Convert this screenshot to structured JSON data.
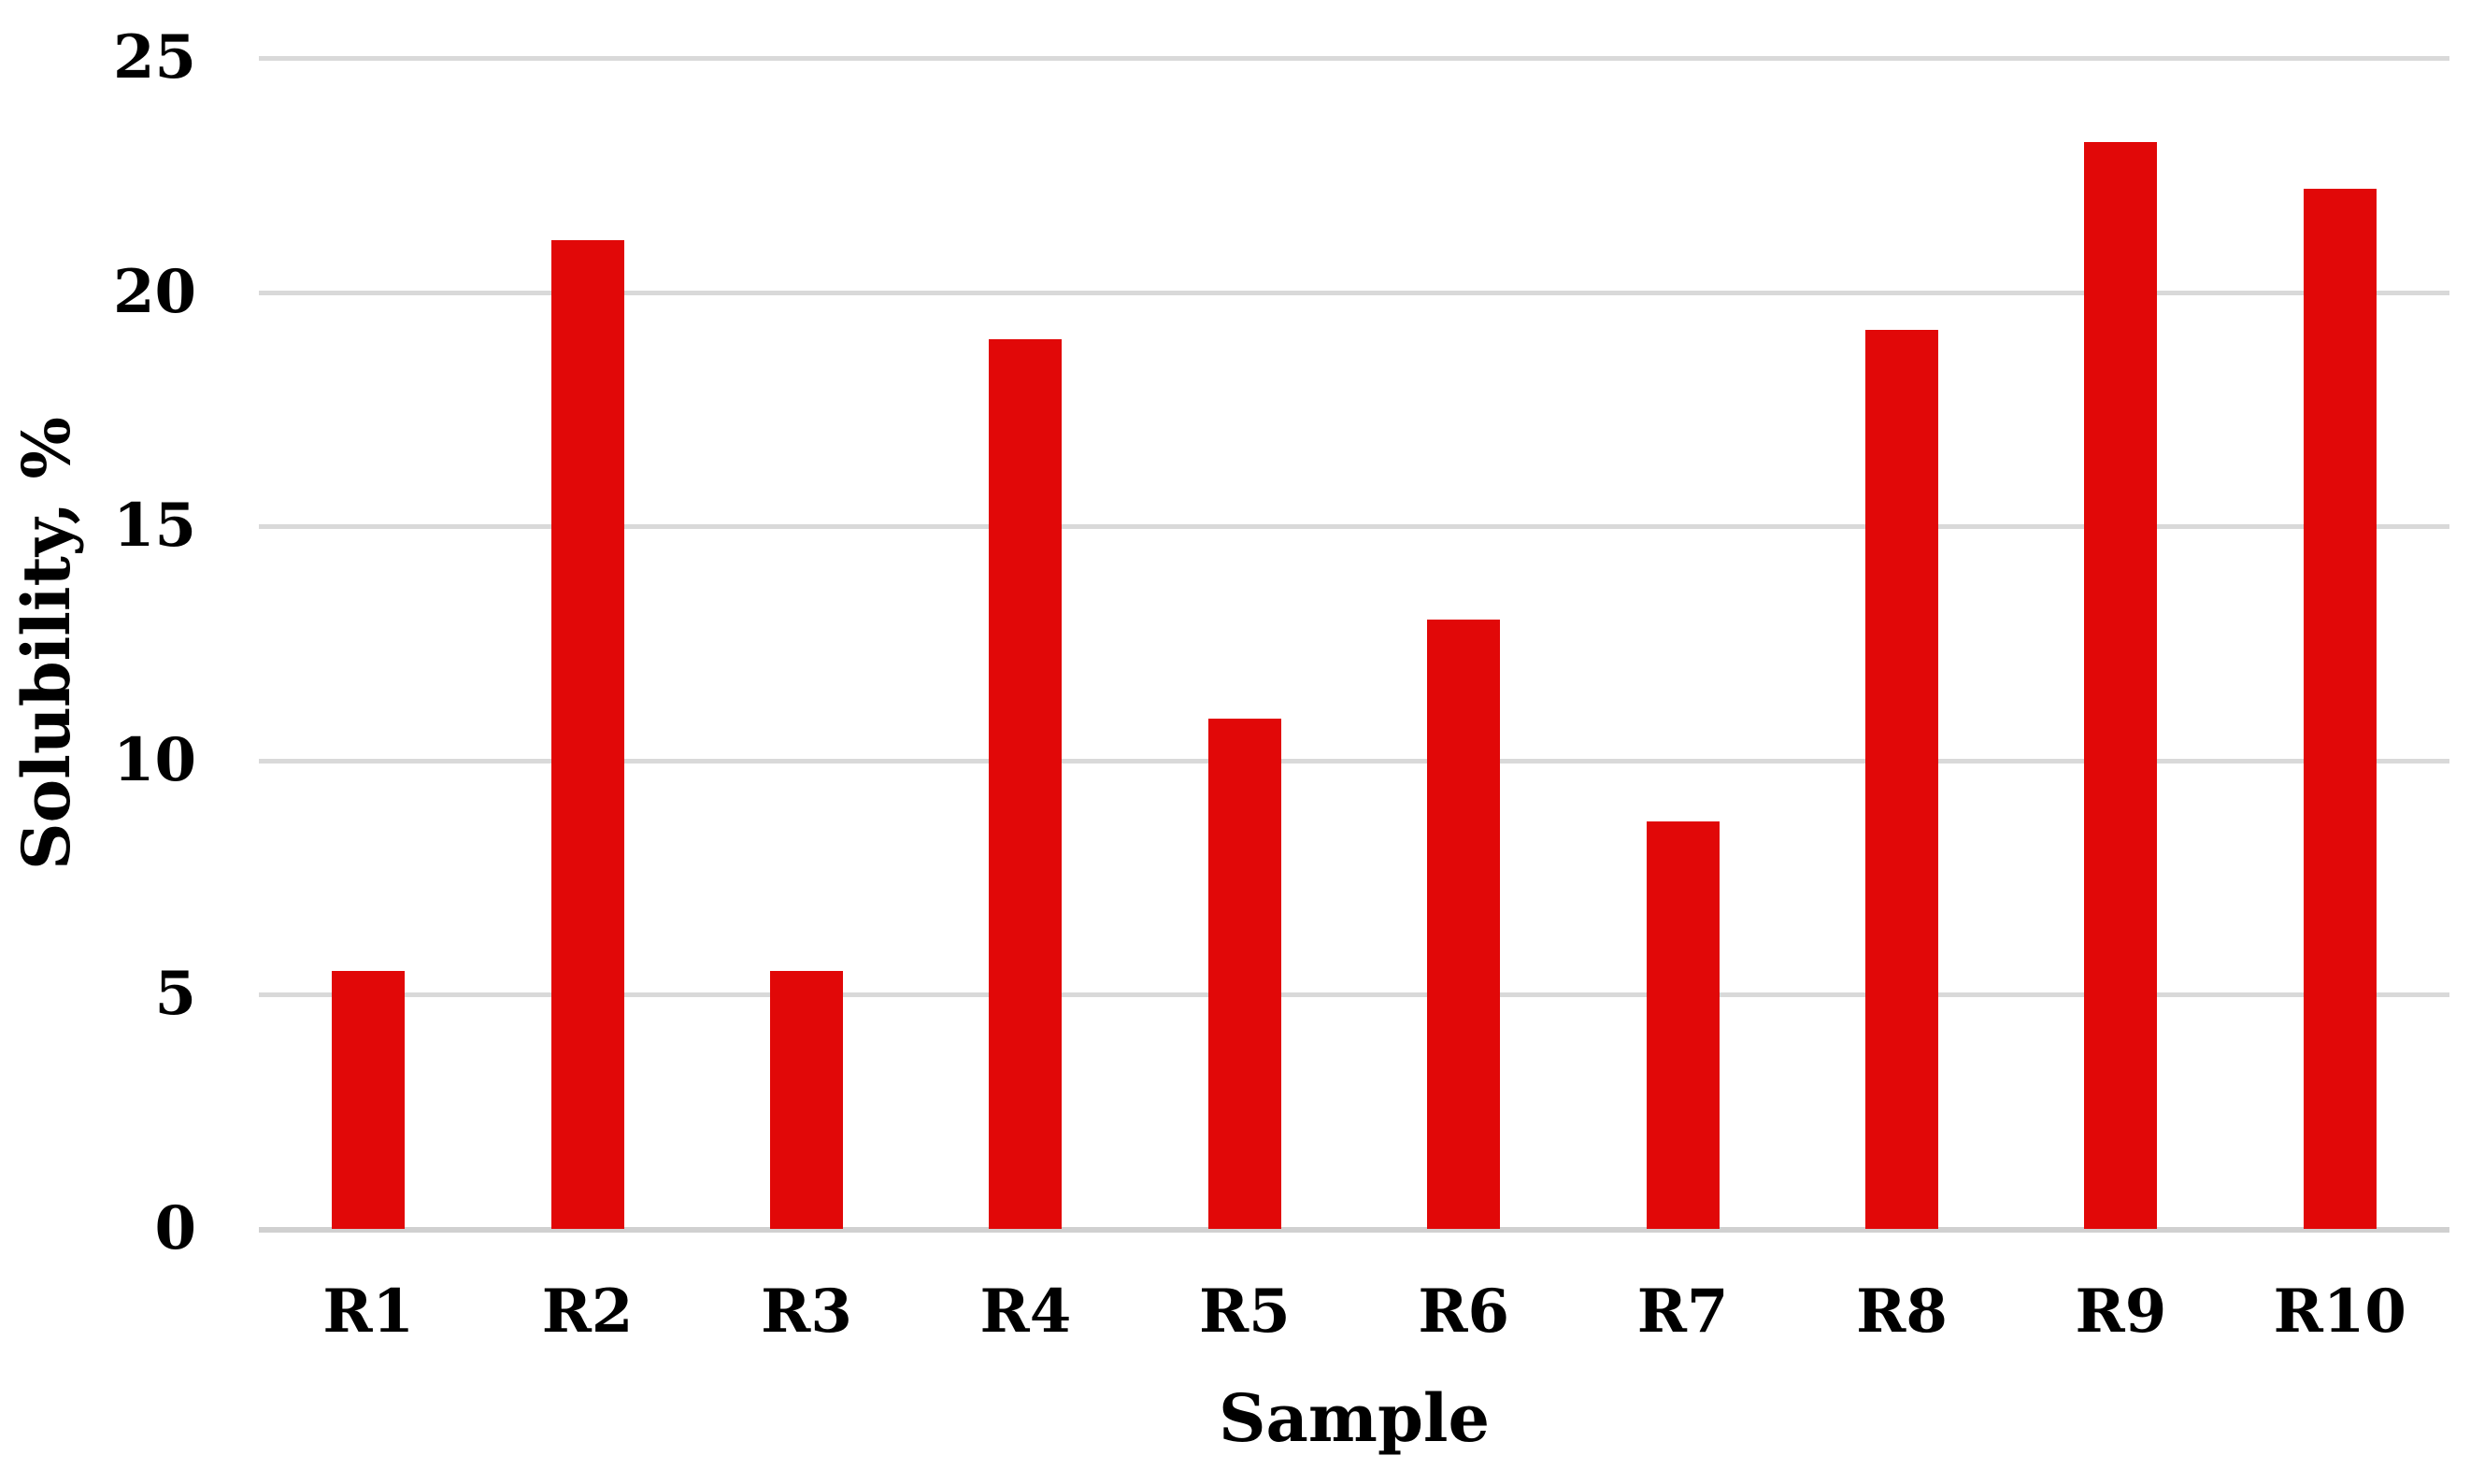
{
  "figure": {
    "background": "#ffffff"
  },
  "chart_data": {
    "type": "bar",
    "title": "",
    "categories": [
      "R1",
      "R2",
      "R3",
      "R4",
      "R5",
      "R6",
      "R7",
      "R8",
      "R9",
      "R10"
    ],
    "values": [
      5.5,
      21.1,
      5.5,
      19.0,
      10.9,
      13.0,
      8.7,
      19.2,
      23.2,
      22.2
    ],
    "xlabel": "Sample",
    "ylabel": "Solubility, %",
    "ylim": [
      0,
      25
    ],
    "yticks": [
      0,
      5,
      10,
      15,
      20,
      25
    ],
    "grid": "horizontal-only",
    "legend": "none",
    "bar_color": "#e10808",
    "gridline_color": "#d9d9d9",
    "axis_line_color": "#d0d0d0",
    "text_color": "#000000"
  }
}
